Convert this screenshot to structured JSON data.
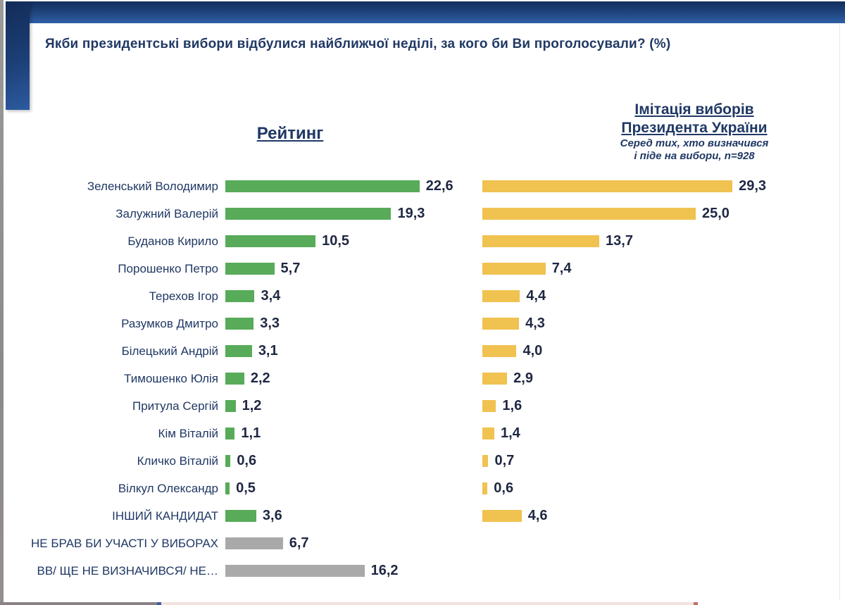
{
  "slide_title": "Якби президентські вибори відбулися найближчої неділі, за кого би Ви проголосували? (%)",
  "left_heading": "Рейтинг",
  "right_heading": {
    "line1": "Імітація виборів",
    "line2": "Президента України",
    "sub1": "Серед тих, хто визначився",
    "sub2": "і піде на вибори, n=928"
  },
  "colors": {
    "band_top": "#132e5c",
    "band_bottom": "#2e60a6",
    "text_navy": "#203864",
    "value_text": "#1f2742",
    "bar_green": "#57AB59",
    "bar_yellow": "#F0C250",
    "bar_gray": "#A9A9A9"
  },
  "chart_data": {
    "type": "bar",
    "orientation": "horizontal",
    "title": "Якби президентські вибори відбулися найближчої неділі, за кого би Ви проголосували? (%)",
    "xlabel": "",
    "ylabel": "",
    "value_range": [
      0,
      30
    ],
    "grid": false,
    "legend_position": "column-headings",
    "decimal_separator": ",",
    "neutral_from_index": 13,
    "neutral_color": "#A9A9A9",
    "categories": [
      "Зеленський Володимир",
      "Залужний Валерій",
      "Буданов Кирило",
      "Порошенко Петро",
      "Терехов Ігор",
      "Разумков Дмитро",
      "Білецький Андрій",
      "Тимошенко Юлія",
      "Притула Сергій",
      "Кім Віталій",
      "Кличко Віталій",
      "Вілкул Олександр",
      "ІНШИЙ КАНДИДАТ",
      "НЕ БРАВ БИ УЧАСТІ У ВИБОРАХ",
      "ВВ/ ЩЕ НЕ ВИЗНАЧИВСЯ/ НЕ…"
    ],
    "series": [
      {
        "name": "Рейтинг",
        "color": "#57AB59",
        "values": [
          22.6,
          19.3,
          10.5,
          5.7,
          3.4,
          3.3,
          3.1,
          2.2,
          1.2,
          1.1,
          0.6,
          0.5,
          3.6,
          6.7,
          16.2
        ]
      },
      {
        "name": "Імітація виборів Президента України (серед тих, хто визначився і піде на вибори, n=928)",
        "color": "#F0C250",
        "values": [
          29.3,
          25.0,
          13.7,
          7.4,
          4.4,
          4.3,
          4.0,
          2.9,
          1.6,
          1.4,
          0.7,
          0.6,
          4.6,
          null,
          null
        ]
      }
    ]
  }
}
